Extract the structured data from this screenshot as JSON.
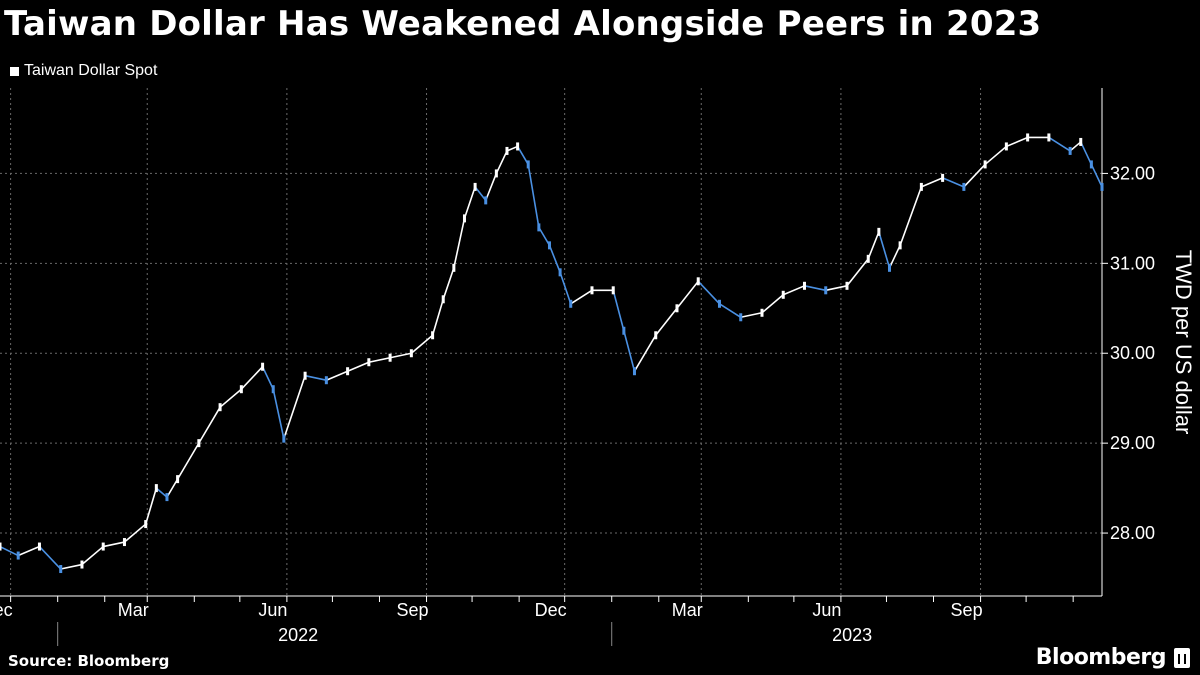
{
  "title": "Taiwan Dollar Has Weakened Alongside Peers in 2023",
  "source": "Source: Bloomberg",
  "brand": "Bloomberg",
  "colors": {
    "background": "#000000",
    "up": "#ffffff",
    "down": "#4a90e2",
    "grid": "#6a6a6a"
  },
  "chart_data": {
    "type": "line",
    "title": "Taiwan Dollar Has Weakened Alongside Peers in 2023",
    "ylabel": "TWD per US dollar",
    "ylim": [
      27.3,
      32.95
    ],
    "y_ticks": [
      "28.00",
      "29.00",
      "30.00",
      "31.00",
      "32.00"
    ],
    "y_tick_values": [
      28,
      29,
      30,
      31,
      32
    ],
    "x_ticks": [
      "Dec",
      "Mar",
      "Jun",
      "Sep",
      "Dec",
      "Mar",
      "Jun",
      "Sep"
    ],
    "x_tick_dates": [
      "2021-12-01",
      "2022-03-01",
      "2022-06-01",
      "2022-09-01",
      "2022-12-01",
      "2023-03-01",
      "2023-06-01",
      "2023-09-01"
    ],
    "year_labels": [
      "2022",
      "2023"
    ],
    "year_label_dates": [
      "2022-06-15",
      "2023-06-15"
    ],
    "x_range": [
      "2021-11-24",
      "2023-11-20"
    ],
    "grid": true,
    "legend": "top-left",
    "series": [
      {
        "name": "Taiwan Dollar Spot",
        "x": [
          "2021-11-24",
          "2021-12-06",
          "2021-12-20",
          "2022-01-03",
          "2022-01-17",
          "2022-01-31",
          "2022-02-14",
          "2022-02-28",
          "2022-03-07",
          "2022-03-14",
          "2022-03-21",
          "2022-04-04",
          "2022-04-18",
          "2022-05-02",
          "2022-05-16",
          "2022-05-23",
          "2022-05-30",
          "2022-06-13",
          "2022-06-27",
          "2022-07-11",
          "2022-07-25",
          "2022-08-08",
          "2022-08-22",
          "2022-09-05",
          "2022-09-12",
          "2022-09-19",
          "2022-09-26",
          "2022-10-03",
          "2022-10-10",
          "2022-10-17",
          "2022-10-24",
          "2022-10-31",
          "2022-11-07",
          "2022-11-14",
          "2022-11-21",
          "2022-11-28",
          "2022-12-05",
          "2022-12-19",
          "2023-01-02",
          "2023-01-09",
          "2023-01-16",
          "2023-01-30",
          "2023-02-13",
          "2023-02-27",
          "2023-03-13",
          "2023-03-27",
          "2023-04-10",
          "2023-04-24",
          "2023-05-08",
          "2023-05-22",
          "2023-06-05",
          "2023-06-19",
          "2023-06-26",
          "2023-07-03",
          "2023-07-10",
          "2023-07-24",
          "2023-08-07",
          "2023-08-21",
          "2023-09-04",
          "2023-09-18",
          "2023-10-02",
          "2023-10-16",
          "2023-10-30",
          "2023-11-06",
          "2023-11-13",
          "2023-11-20"
        ],
        "y": [
          27.85,
          27.75,
          27.85,
          27.6,
          27.65,
          27.85,
          27.9,
          28.1,
          28.5,
          28.4,
          28.6,
          29.0,
          29.4,
          29.6,
          29.85,
          29.6,
          29.05,
          29.75,
          29.7,
          29.8,
          29.9,
          29.95,
          30.0,
          30.2,
          30.6,
          30.95,
          31.5,
          31.85,
          31.7,
          32.0,
          32.25,
          32.3,
          32.1,
          31.4,
          31.2,
          30.9,
          30.55,
          30.7,
          30.7,
          30.25,
          29.8,
          30.2,
          30.5,
          30.8,
          30.55,
          30.4,
          30.45,
          30.65,
          30.75,
          30.7,
          30.75,
          31.05,
          31.35,
          30.95,
          31.2,
          31.85,
          31.95,
          31.85,
          32.1,
          32.3,
          32.4,
          32.4,
          32.25,
          32.35,
          32.1,
          31.85
        ]
      }
    ]
  }
}
